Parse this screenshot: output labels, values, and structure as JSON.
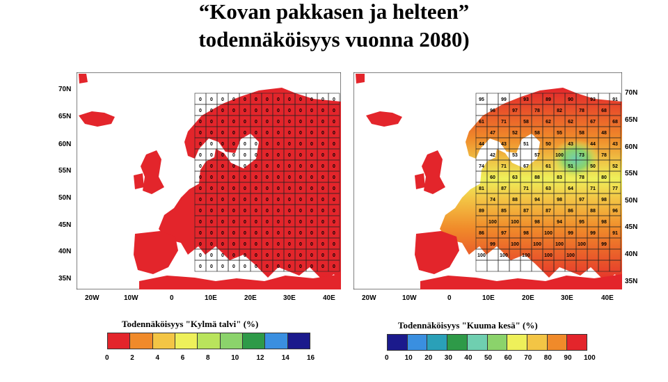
{
  "title": {
    "line1": "“Kovan pakkasen ja helteen”",
    "line2": "todennäköisyys vuonna 2080)"
  },
  "maps": {
    "left": {
      "lat_labels": [
        "70N",
        "65N",
        "60N",
        "55N",
        "50N",
        "45N",
        "40N",
        "35N"
      ],
      "lon_labels": [
        "20W",
        "10W",
        "0",
        "10E",
        "20E",
        "30E",
        "40E"
      ],
      "dominant_color": "#e3252b",
      "cell_values": "0"
    },
    "right": {
      "lat_labels": [
        "70N",
        "65N",
        "60N",
        "55N",
        "50N",
        "45N",
        "40N",
        "35N"
      ],
      "lon_labels": [
        "20W",
        "10W",
        "0",
        "10E",
        "20E",
        "30E",
        "40E"
      ],
      "sample_values": [
        "95",
        "99",
        "93",
        "89",
        "90",
        "93",
        "91",
        "96",
        "97",
        "78",
        "82",
        "78",
        "68",
        "61",
        "71",
        "58",
        "62",
        "62",
        "67",
        "68",
        "47",
        "52",
        "58",
        "55",
        "58",
        "48",
        "44",
        "43",
        "51",
        "50",
        "43",
        "44",
        "43",
        "42",
        "53",
        "57",
        "100",
        "73",
        "78",
        "74",
        "71",
        "67",
        "61",
        "51",
        "50",
        "52",
        "60",
        "63",
        "88",
        "83",
        "78",
        "80",
        "81",
        "87",
        "71",
        "63",
        "64",
        "71",
        "77",
        "74",
        "88",
        "94",
        "98",
        "97",
        "98",
        "89",
        "85",
        "87",
        "87",
        "86",
        "88",
        "96",
        "100",
        "100",
        "98",
        "94",
        "95",
        "98",
        "86",
        "97",
        "98",
        "100",
        "99",
        "99",
        "91",
        "99",
        "100",
        "100",
        "100",
        "100",
        "99",
        "100",
        "100",
        "100",
        "100",
        "100"
      ]
    }
  },
  "legends": {
    "left": {
      "title": "Todennäköisyys \"Kylmä talvi\" (%)",
      "ticks": [
        "0",
        "2",
        "4",
        "6",
        "8",
        "10",
        "12",
        "14",
        "16"
      ],
      "colors": [
        "#e3252b",
        "#f08a2a",
        "#f3c545",
        "#eef05a",
        "#b9e45c",
        "#8bd36b",
        "#2e9a48",
        "#3a8fe0",
        "#1b1a8c"
      ]
    },
    "right": {
      "title": "Todennäköisyys \"Kuuma kesä\" (%)",
      "ticks": [
        "0",
        "10",
        "20",
        "30",
        "40",
        "50",
        "60",
        "70",
        "80",
        "90",
        "100"
      ],
      "colors": [
        "#1b1a8c",
        "#3a8fe0",
        "#2aa0b8",
        "#2e9a48",
        "#6fcfb0",
        "#8bd36b",
        "#eef05a",
        "#f3c545",
        "#f08a2a",
        "#e3252b"
      ]
    }
  }
}
